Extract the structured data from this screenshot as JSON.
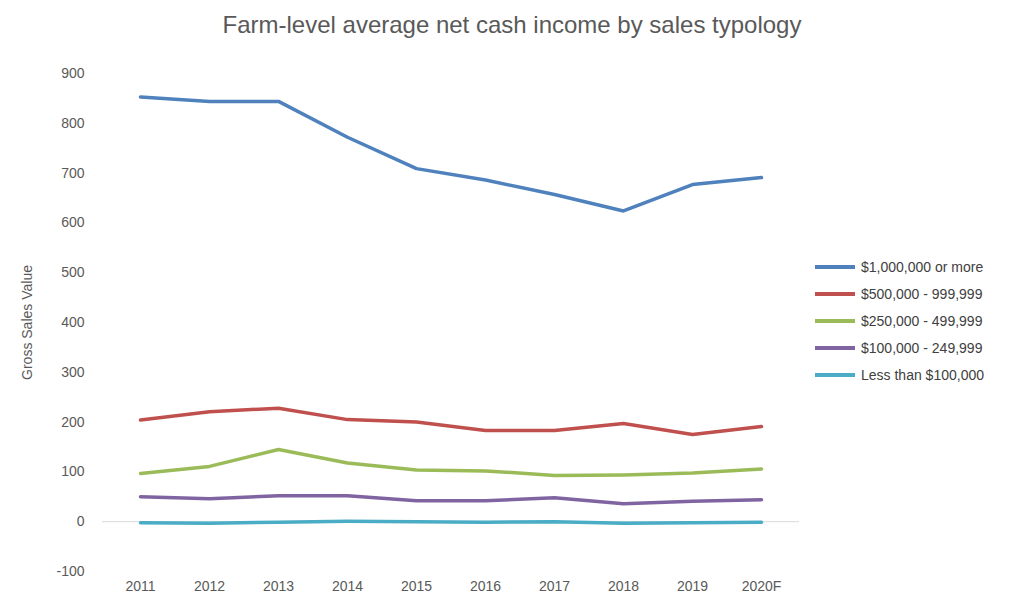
{
  "chart_data": {
    "type": "line",
    "title": "Farm-level average net cash income by sales typology",
    "y_label": "Gross Sales Value",
    "categories": [
      "2011",
      "2012",
      "2013",
      "2014",
      "2015",
      "2016",
      "2017",
      "2018",
      "2019",
      "2020F"
    ],
    "ylim": [
      -100,
      900
    ],
    "yticks": [
      -100,
      0,
      100,
      200,
      300,
      400,
      500,
      600,
      700,
      800,
      900
    ],
    "grid": false,
    "legend": "right",
    "series": [
      {
        "name": "$1,000,000 or more",
        "color": "#4f81bd",
        "values": [
          853,
          844,
          844,
          772,
          709,
          686,
          657,
          624,
          677,
          691
        ]
      },
      {
        "name": "$500,000 - 999,999",
        "color": "#c0504d",
        "values": [
          204,
          221,
          228,
          205,
          200,
          183,
          183,
          197,
          175,
          191
        ]
      },
      {
        "name": "$250,000 - 499,999",
        "color": "#9bbb59",
        "values": [
          97,
          111,
          145,
          118,
          104,
          102,
          93,
          94,
          98,
          106
        ]
      },
      {
        "name": "$100,000 - 249,999",
        "color": "#8064a2",
        "values": [
          50,
          46,
          52,
          52,
          42,
          42,
          48,
          36,
          41,
          44
        ]
      },
      {
        "name": "Less than $100,000",
        "color": "#4bacc6",
        "values": [
          -2,
          -3,
          -1,
          1,
          0,
          -1,
          0,
          -3,
          -2,
          -1
        ]
      }
    ]
  }
}
